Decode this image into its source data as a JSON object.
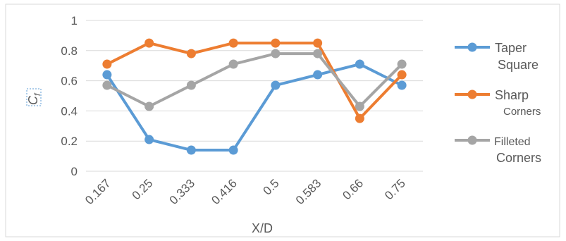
{
  "chart_data": {
    "type": "line",
    "categories": [
      "0.167",
      "0.25",
      "0.333",
      "0.416",
      "0.5",
      "0.583",
      "0.66",
      "0.75"
    ],
    "xlabel": "X/D",
    "ylabel": "C",
    "ylabel_subscript": "f",
    "ylim": [
      0,
      1
    ],
    "yticks": [
      "0",
      "0.2",
      "0.4",
      "0.6",
      "0.8",
      "1"
    ],
    "grid": "horizontal",
    "legend_position": "right",
    "series": [
      {
        "name": "Taper Square",
        "legend_lines": [
          "Taper",
          "Square"
        ],
        "color": "#5B9BD5",
        "values": [
          0.64,
          0.21,
          0.14,
          0.14,
          0.57,
          0.64,
          0.71,
          0.57
        ]
      },
      {
        "name": "Sharp Corners",
        "legend_lines": [
          "Sharp",
          "Corners"
        ],
        "color": "#ED7D31",
        "values": [
          0.71,
          0.85,
          0.78,
          0.85,
          0.85,
          0.85,
          0.35,
          0.64
        ]
      },
      {
        "name": "Filleted Corners",
        "legend_lines": [
          "Filleted",
          "Corners"
        ],
        "color": "#A5A5A5",
        "values": [
          0.57,
          0.43,
          0.57,
          0.71,
          0.78,
          0.78,
          0.43,
          0.71
        ]
      }
    ]
  }
}
